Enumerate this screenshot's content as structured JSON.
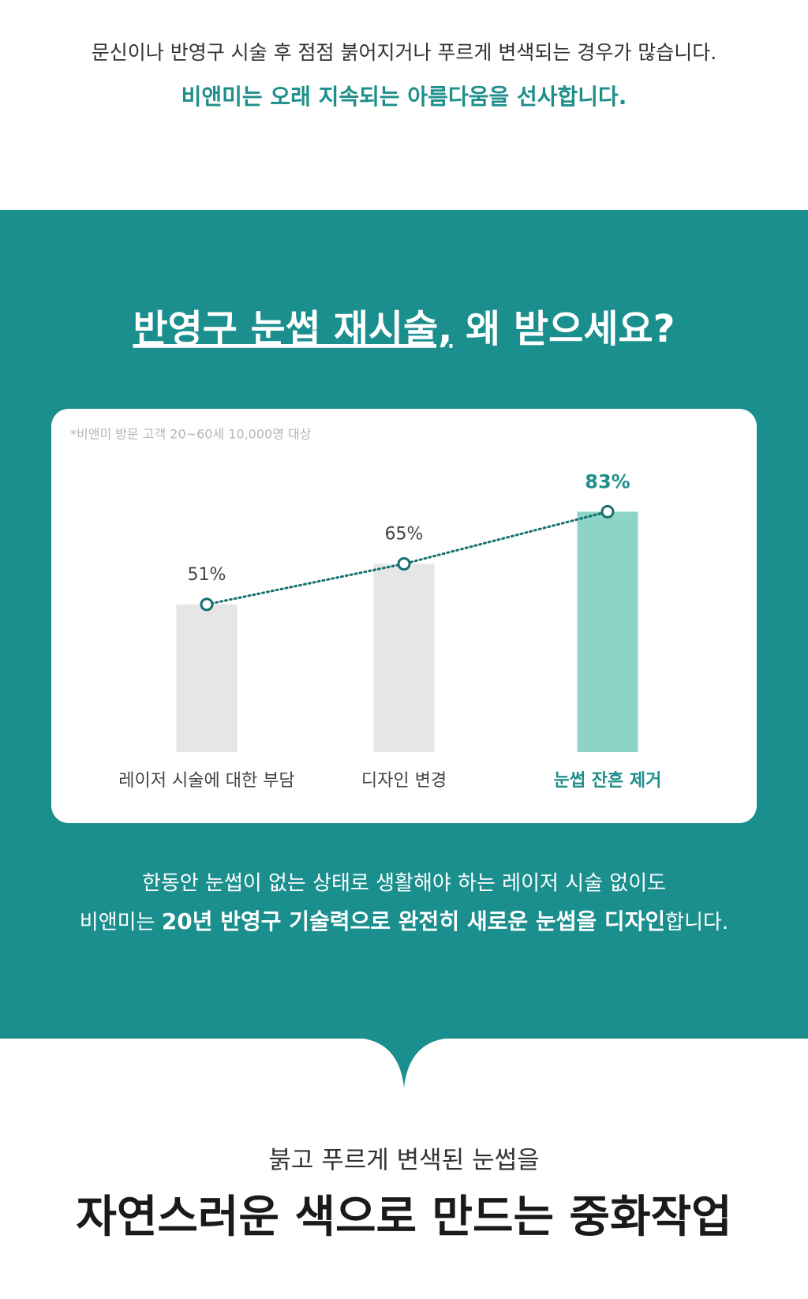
{
  "intro": {
    "line1": "문신이나 반영구 시술 후 점점 붉어지거나 푸르게 변색되는 경우가 많습니다.",
    "line2": "비앤미는 오래 지속되는 아름다움을 선사합니다."
  },
  "section": {
    "heading": [
      "반영구 눈썹 재시술,",
      " 왜 받으세요?"
    ]
  },
  "chart_data": {
    "type": "bar",
    "note": "*비앤미 방문 고객 20~60세 10,000명 대상",
    "categories": [
      "레이저 시술에 대한 부담",
      "디자인 변경",
      "눈썹 잔흔 제거"
    ],
    "values": [
      51,
      65,
      83
    ],
    "value_labels": [
      "51%",
      "65%",
      "83%"
    ],
    "colors": [
      "#e6e6e6",
      "#e6e6e6",
      "#8dd3c6"
    ],
    "highlight": 2,
    "trend_line": true,
    "line_color": "#146f6f"
  },
  "closing": {
    "line1": "한동안 눈썹이 없는 상태로 생활해야 하는 레이저 시술 없이도",
    "line2": [
      "비앤미는 ",
      "20년 반영구 기술력으로 완전히 새로운 눈썹을 디자인",
      "합니다."
    ]
  },
  "footer": {
    "subtitle": "붉고 푸르게 변색된 눈썹을",
    "title": "자연스러운 색으로 만드는 중화작업"
  }
}
